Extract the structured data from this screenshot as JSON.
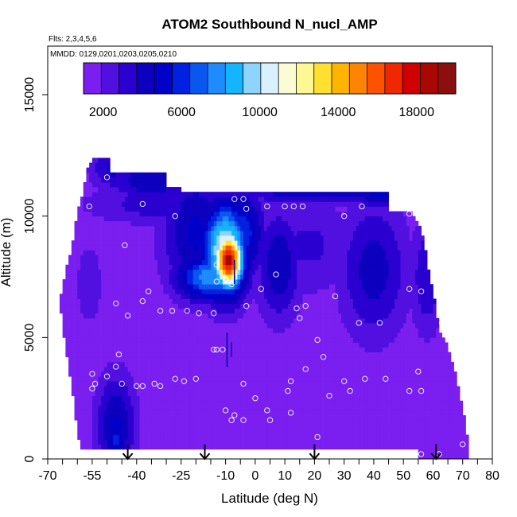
{
  "chart_data": {
    "type": "heatmap",
    "title": "ATOM2 Southbound N_nucl_AMP",
    "flights_label": "Flts: 2,3,4,5,6",
    "dates_label": "MMDD: 0129,0201,0203,0205,0210",
    "xlabel": "Latitude (deg N)",
    "ylabel": "Altitude (m)",
    "xlim": [
      -70,
      80
    ],
    "ylim": [
      0,
      17000
    ],
    "x_ticks": [
      -70,
      -55,
      -40,
      -25,
      -10,
      0,
      10,
      20,
      30,
      40,
      50,
      60,
      70,
      80
    ],
    "x_tick_labels": [
      "-70",
      "-55",
      "-40",
      "-25",
      "-10",
      "0",
      "10",
      "20",
      "30",
      "40",
      "50",
      "60",
      "70",
      "80"
    ],
    "x_minor_ticks": [
      -65,
      -60,
      -50,
      -45,
      -35,
      -30,
      -20,
      -15,
      -5,
      5,
      15,
      25,
      35,
      45,
      55,
      65,
      75
    ],
    "y_ticks": [
      0,
      5000,
      10000,
      15000
    ],
    "y_tick_labels": [
      "0",
      "5000",
      "10000",
      "15000"
    ],
    "colorbar": {
      "range": [
        1000,
        20000
      ],
      "tick_values": [
        2000,
        6000,
        10000,
        14000,
        18000
      ],
      "tick_labels": [
        "2000",
        "6000",
        "10000",
        "14000",
        "18000"
      ],
      "colors": [
        "#7a1ff0",
        "#5210e0",
        "#2a00d0",
        "#0d00bf",
        "#0000c8",
        "#0022e0",
        "#0a56f0",
        "#1e8cff",
        "#14b4ff",
        "#8fd4ff",
        "#d8f0ff",
        "#fbfbd6",
        "#fff694",
        "#ffe030",
        "#ffb400",
        "#ff8400",
        "#ff5200",
        "#f02800",
        "#d00000",
        "#a80800",
        "#8a1010"
      ]
    },
    "background_level": 1000,
    "coverage": [
      [
        -58,
        11000
      ],
      [
        -56,
        12200
      ],
      [
        -54,
        12400
      ],
      [
        -49,
        12400
      ],
      [
        -49,
        11800
      ],
      [
        -43,
        11900
      ],
      [
        -40,
        11800
      ],
      [
        -30,
        11900
      ],
      [
        -30,
        11200
      ],
      [
        -20,
        11000
      ],
      [
        -10,
        11000
      ],
      [
        45,
        11000
      ],
      [
        45,
        10100
      ],
      [
        52,
        10200
      ],
      [
        56,
        9500
      ],
      [
        58,
        8200
      ],
      [
        60,
        7000
      ],
      [
        62,
        5400
      ],
      [
        66,
        4300
      ],
      [
        68,
        3300
      ],
      [
        71,
        1500
      ],
      [
        72,
        600
      ],
      [
        72,
        0
      ],
      [
        55,
        0
      ],
      [
        55,
        400
      ],
      [
        -59,
        400
      ],
      [
        -62,
        3000
      ],
      [
        -64,
        4500
      ],
      [
        -65,
        5700
      ],
      [
        -66,
        6500
      ],
      [
        -63,
        8200
      ],
      [
        -61,
        9300
      ],
      [
        -60,
        10300
      ],
      [
        -58,
        11000
      ]
    ],
    "features": [
      {
        "lat": -48,
        "alt": 12000,
        "w": 8,
        "h": 1000,
        "v": 4000
      },
      {
        "lat": -35,
        "alt": 11500,
        "w": 15,
        "h": 1000,
        "v": 4500
      },
      {
        "lat": -28,
        "alt": 11300,
        "w": 6,
        "h": 600,
        "v": 3200
      },
      {
        "lat": 22,
        "alt": 11300,
        "w": 36,
        "h": 800,
        "v": 5200
      },
      {
        "lat": 42,
        "alt": 10900,
        "w": 10,
        "h": 600,
        "v": 5000
      },
      {
        "lat": -28,
        "alt": 10500,
        "w": 30,
        "h": 900,
        "v": 3500
      },
      {
        "lat": -20,
        "alt": 9300,
        "w": 12,
        "h": 2800,
        "v": 4800
      },
      {
        "lat": -10,
        "alt": 8600,
        "w": 8,
        "h": 2000,
        "v": 11000
      },
      {
        "lat": -9,
        "alt": 8200,
        "w": 5,
        "h": 1200,
        "v": 18500
      },
      {
        "lat": -5,
        "alt": 9300,
        "w": 8,
        "h": 1800,
        "v": 6500
      },
      {
        "lat": -15,
        "alt": 7500,
        "w": 12,
        "h": 1000,
        "v": 8000
      },
      {
        "lat": 8,
        "alt": 8000,
        "w": 8,
        "h": 2400,
        "v": 4500
      },
      {
        "lat": 18,
        "alt": 8800,
        "w": 16,
        "h": 2200,
        "v": 3000
      },
      {
        "lat": 40,
        "alt": 7800,
        "w": 12,
        "h": 3000,
        "v": 4200
      },
      {
        "lat": 58,
        "alt": 7500,
        "w": 6,
        "h": 2600,
        "v": 3600
      },
      {
        "lat": -56,
        "alt": 7200,
        "w": 5,
        "h": 2000,
        "v": 2600
      },
      {
        "lat": -47,
        "alt": 1400,
        "w": 7,
        "h": 2200,
        "v": 4800
      },
      {
        "lat": -47,
        "alt": 800,
        "w": 3,
        "h": 700,
        "v": 6500
      }
    ],
    "observation_points": [
      [
        -50,
        11600
      ],
      [
        -43,
        12000
      ],
      [
        -41,
        12250
      ],
      [
        -38,
        10500
      ],
      [
        -27,
        10000
      ],
      [
        -56,
        10400
      ],
      [
        -62,
        9800
      ],
      [
        -44,
        8800
      ],
      [
        -36,
        6900
      ],
      [
        -38,
        6500
      ],
      [
        -47,
        6400
      ],
      [
        -43,
        5900
      ],
      [
        -32,
        6100
      ],
      [
        -28,
        6100
      ],
      [
        -23,
        6100
      ],
      [
        -19,
        6000
      ],
      [
        -14,
        6000
      ],
      [
        -13,
        7300
      ],
      [
        -10,
        7350
      ],
      [
        -10,
        7400
      ],
      [
        -8,
        7200
      ],
      [
        -13,
        8000
      ],
      [
        -3,
        6300
      ],
      [
        -7,
        10700
      ],
      [
        -4,
        10700
      ],
      [
        -3,
        10300
      ],
      [
        4,
        10400
      ],
      [
        10,
        10400
      ],
      [
        13,
        10400
      ],
      [
        16,
        10400
      ],
      [
        30,
        10000
      ],
      [
        36,
        10400
      ],
      [
        49,
        10400
      ],
      [
        52,
        10100
      ],
      [
        2,
        7000
      ],
      [
        7,
        7600
      ],
      [
        14,
        6200
      ],
      [
        15,
        5800
      ],
      [
        17,
        6300
      ],
      [
        27,
        6700
      ],
      [
        35,
        5600
      ],
      [
        42,
        5600
      ],
      [
        52,
        7000
      ],
      [
        56,
        6900
      ],
      [
        63,
        5600
      ],
      [
        -38,
        3000
      ],
      [
        -34,
        3100
      ],
      [
        -32,
        3000
      ],
      [
        -27,
        3300
      ],
      [
        -24,
        3200
      ],
      [
        -20,
        3300
      ],
      [
        -14,
        4500
      ],
      [
        -13,
        4500
      ],
      [
        -11,
        4500
      ],
      [
        -7,
        1800
      ],
      [
        -8,
        1600
      ],
      [
        0,
        2500
      ],
      [
        4,
        2000
      ],
      [
        11,
        2800
      ],
      [
        12,
        3200
      ],
      [
        17,
        3700
      ],
      [
        21,
        4900
      ],
      [
        23,
        4200
      ],
      [
        25,
        2600
      ],
      [
        30,
        3200
      ],
      [
        32,
        2800
      ],
      [
        37,
        3300
      ],
      [
        44,
        3300
      ],
      [
        52,
        2800
      ],
      [
        55,
        3600
      ],
      [
        56,
        2800
      ],
      [
        -55,
        2900
      ],
      [
        -54,
        3100
      ],
      [
        -50,
        3400
      ],
      [
        -47,
        3800
      ],
      [
        -46,
        4300
      ],
      [
        -45,
        3100
      ],
      [
        -40,
        3000
      ],
      [
        -4,
        1600
      ],
      [
        5,
        1600
      ],
      [
        12,
        1900
      ],
      [
        -55,
        3500
      ],
      [
        -4,
        3100
      ],
      [
        -10,
        2000
      ],
      [
        21,
        900
      ],
      [
        -55,
        100
      ],
      [
        -48,
        100
      ],
      [
        -45,
        100
      ],
      [
        -40,
        200
      ],
      [
        -35,
        100
      ],
      [
        -30,
        150
      ],
      [
        -25,
        200
      ],
      [
        -20,
        100
      ],
      [
        -15,
        100
      ],
      [
        -10,
        150
      ],
      [
        -6,
        250
      ],
      [
        -2,
        200
      ],
      [
        3,
        150
      ],
      [
        8,
        200
      ],
      [
        13,
        150
      ],
      [
        17,
        100
      ],
      [
        22,
        150
      ],
      [
        27,
        150
      ],
      [
        32,
        150
      ],
      [
        37,
        100
      ],
      [
        42,
        200
      ],
      [
        47,
        100
      ],
      [
        51,
        200
      ],
      [
        56,
        200
      ],
      [
        62,
        200
      ],
      [
        70,
        600
      ]
    ],
    "flight_segments": [
      {
        "lat": -9.5,
        "alt_start": 3800,
        "alt_end": 5200
      },
      {
        "lat": -7,
        "alt_start": 7200,
        "alt_end": 8200
      },
      {
        "lat": -8,
        "alt_start": 4200,
        "alt_end": 4800
      }
    ],
    "arrows": [
      -43,
      -17,
      20,
      61
    ],
    "arrow_alt_top": 600,
    "arrow_alt_bottom": 0
  }
}
